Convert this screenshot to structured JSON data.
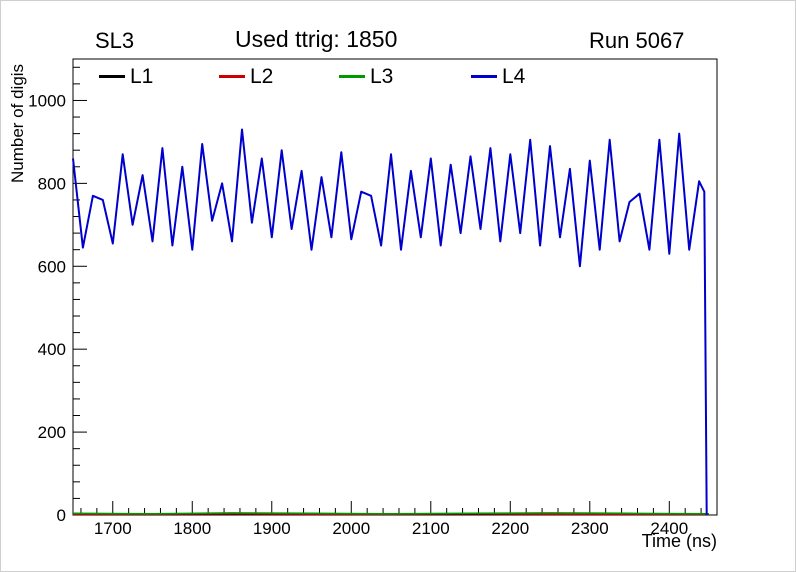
{
  "header": {
    "pad_title": "SL3",
    "center_title": "Used ttrig: 1850",
    "right_title": "Run 5067"
  },
  "axes": {
    "y_label": "Number of digis",
    "x_label": "Time (ns)"
  },
  "legend": {
    "items": [
      {
        "label": "L1",
        "color": "#000000"
      },
      {
        "label": "L2",
        "color": "#cc0000"
      },
      {
        "label": "L3",
        "color": "#009900"
      },
      {
        "label": "L4",
        "color": "#0000cc"
      }
    ]
  },
  "chart_data": {
    "type": "line",
    "title": "Used ttrig: 1850",
    "subtitle_left": "SL3",
    "subtitle_right": "Run 5067",
    "xlabel": "Time (ns)",
    "ylabel": "Number of digis",
    "xlim": [
      1650,
      2460
    ],
    "ylim": [
      0,
      1100
    ],
    "x_ticks": [
      1700,
      1800,
      1900,
      2000,
      2100,
      2200,
      2300,
      2400
    ],
    "y_ticks": [
      0,
      200,
      400,
      600,
      800,
      1000
    ],
    "x_minor_step": 20,
    "y_minor_step": 40,
    "grid": false,
    "legend_position": "top-inside",
    "series": [
      {
        "name": "L1",
        "color": "#000000",
        "x": [
          1650,
          1750,
          1850,
          1950,
          2050,
          2150,
          2250,
          2350,
          2450
        ],
        "y": [
          1,
          1,
          1,
          1,
          1,
          1,
          1,
          1,
          1
        ]
      },
      {
        "name": "L2",
        "color": "#cc0000",
        "x": [
          1650,
          1750,
          1850,
          1950,
          2050,
          2150,
          2250,
          2350,
          2450
        ],
        "y": [
          2,
          2,
          3,
          2,
          2,
          3,
          2,
          2,
          2
        ]
      },
      {
        "name": "L3",
        "color": "#009900",
        "x": [
          1650,
          1750,
          1850,
          1950,
          2050,
          2150,
          2250,
          2350,
          2450
        ],
        "y": [
          4,
          3,
          5,
          4,
          3,
          4,
          5,
          4,
          3
        ]
      },
      {
        "name": "L4",
        "color": "#0000cc",
        "x": [
          1650,
          1662.5,
          1675,
          1687.5,
          1700,
          1712.5,
          1725,
          1737.5,
          1750,
          1762.5,
          1775,
          1787.5,
          1800,
          1812.5,
          1825,
          1837.5,
          1850,
          1862.5,
          1875,
          1887.5,
          1900,
          1912.5,
          1925,
          1937.5,
          1950,
          1962.5,
          1975,
          1987.5,
          2000,
          2012.5,
          2025,
          2037.5,
          2050,
          2062.5,
          2075,
          2087.5,
          2100,
          2112.5,
          2125,
          2137.5,
          2150,
          2162.5,
          2175,
          2187.5,
          2200,
          2212.5,
          2225,
          2237.5,
          2250,
          2262.5,
          2275,
          2287.5,
          2300,
          2312.5,
          2325,
          2337.5,
          2350,
          2362.5,
          2375,
          2387.5,
          2400,
          2412.5,
          2425,
          2437.5,
          2444,
          2447
        ],
        "y": [
          860,
          645,
          770,
          760,
          655,
          870,
          700,
          820,
          660,
          885,
          650,
          840,
          640,
          895,
          710,
          800,
          660,
          930,
          705,
          860,
          670,
          880,
          690,
          830,
          640,
          815,
          670,
          875,
          665,
          780,
          770,
          650,
          870,
          640,
          830,
          670,
          860,
          650,
          845,
          680,
          865,
          690,
          885,
          660,
          870,
          680,
          905,
          650,
          890,
          670,
          835,
          600,
          855,
          640,
          905,
          660,
          755,
          775,
          640,
          905,
          630,
          920,
          640,
          805,
          780,
          0
        ]
      }
    ]
  }
}
